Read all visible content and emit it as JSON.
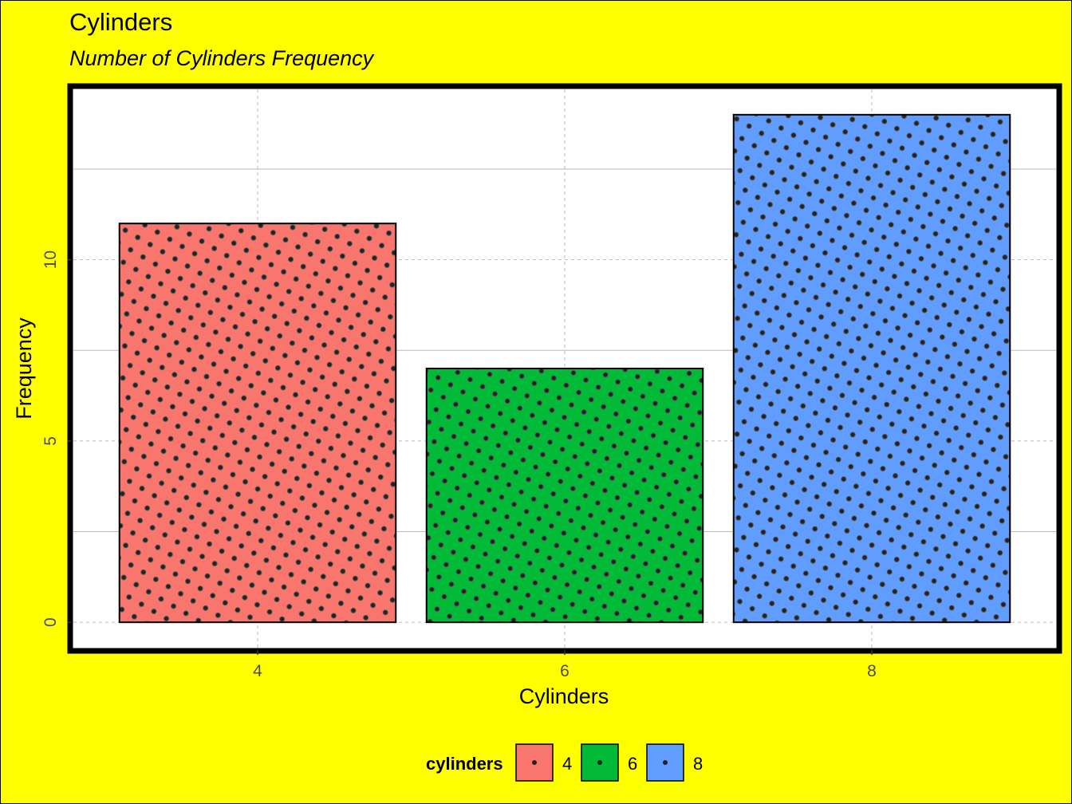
{
  "chart_data": {
    "type": "bar",
    "title": "Cylinders",
    "subtitle": "Number of Cylinders Frequency",
    "xlabel": "Cylinders",
    "ylabel": "Frequency",
    "categories": [
      "4",
      "6",
      "8"
    ],
    "x": [
      4,
      6,
      8
    ],
    "values": [
      11,
      7,
      14
    ],
    "colors": [
      "#f8766d",
      "#00ba38",
      "#619cff"
    ],
    "xlim": [
      2.8,
      9.2
    ],
    "ylim": [
      -0.7,
      14.7
    ],
    "y_ticks": [
      0,
      5,
      10
    ],
    "y_tick_labels": [
      "0",
      "5",
      "10"
    ],
    "x_ticks": [
      4,
      6,
      8
    ],
    "x_tick_labels": [
      "4",
      "6",
      "8"
    ],
    "grid": true,
    "pattern": "dots",
    "background_color": "#ffff00",
    "panel_color": "#ffffff",
    "legend": {
      "title": "cylinders",
      "position": "bottom",
      "labels": [
        "4",
        "6",
        "8"
      ]
    }
  }
}
